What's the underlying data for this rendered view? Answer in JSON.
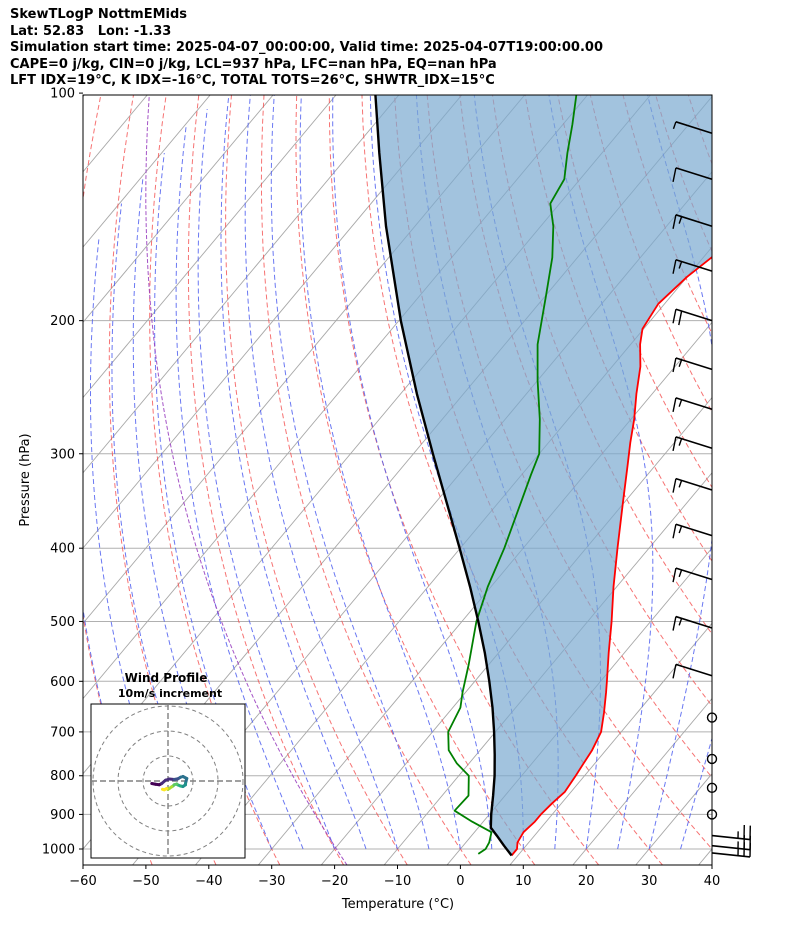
{
  "header": {
    "lines": [
      "SkewTLogP NottmEMids",
      "Lat: 52.83   Lon: -1.33",
      "Simulation start time: 2025-04-07_00:00:00, Valid time: 2025-04-07T19:00:00.00",
      "CAPE=0 j/kg, CIN=0 j/kg, LCL=937 hPa, LFC=nan hPa, EQ=nan hPa",
      "LFT IDX=19°C, K IDX=-16°C, TOTAL TOTS=26°C, SHWTR_IDX=15°C"
    ]
  },
  "chart_data": {
    "type": "line",
    "subtype": "skew-t log-p",
    "xlabel": "Temperature (°C)",
    "ylabel": "Pressure (hPa)",
    "xlim": [
      -60,
      40
    ],
    "ylim": [
      1050,
      100
    ],
    "yscale": "log",
    "grid": true,
    "x_ticks": [
      -60,
      -50,
      -40,
      -30,
      -20,
      -10,
      0,
      10,
      20,
      30,
      40
    ],
    "x_tick_labels": [
      "−60",
      "−50",
      "−40",
      "−30",
      "−20",
      "−10",
      "0",
      "10",
      "20",
      "30",
      "40"
    ],
    "y_ticks": [
      1000,
      900,
      800,
      700,
      600,
      500,
      400,
      300,
      200,
      100
    ],
    "y_tick_labels": [
      "1000",
      "900",
      "800",
      "700",
      "600",
      "500",
      "400",
      "300",
      "200",
      "100"
    ],
    "series": [
      {
        "kind": "temperature",
        "color": "#ff0000",
        "points": [
          [
            1020,
            9.0
          ],
          [
            1000,
            9.0
          ],
          [
            980,
            8.2
          ],
          [
            950,
            7.8
          ],
          [
            920,
            8.2
          ],
          [
            900,
            8.2
          ],
          [
            870,
            8.5
          ],
          [
            840,
            9.0
          ],
          [
            800,
            8.6
          ],
          [
            770,
            8.2
          ],
          [
            740,
            7.8
          ],
          [
            700,
            6.8
          ],
          [
            660,
            4.7
          ],
          [
            620,
            2.3
          ],
          [
            600,
            1.0
          ],
          [
            550,
            -2.5
          ],
          [
            500,
            -6.2
          ],
          [
            450,
            -10.5
          ],
          [
            400,
            -15.0
          ],
          [
            350,
            -20.0
          ],
          [
            310,
            -24.5
          ],
          [
            290,
            -27.0
          ],
          [
            270,
            -29.5
          ],
          [
            250,
            -32.5
          ],
          [
            230,
            -35.5
          ],
          [
            215,
            -38.5
          ],
          [
            205,
            -40.2
          ],
          [
            190,
            -41.0
          ],
          [
            175,
            -40.0
          ],
          [
            160,
            -38.0
          ],
          [
            145,
            -36.5
          ],
          [
            135,
            -34.5
          ],
          [
            120,
            -33.0
          ],
          [
            110,
            -32.0
          ],
          [
            100,
            -31.5
          ]
        ]
      },
      {
        "kind": "dewpoint",
        "color": "#008000",
        "points": [
          [
            1015,
            3.5
          ],
          [
            1000,
            4.0
          ],
          [
            980,
            3.7
          ],
          [
            950,
            2.7
          ],
          [
            920,
            -1.8
          ],
          [
            890,
            -6.0
          ],
          [
            850,
            -5.8
          ],
          [
            800,
            -8.4
          ],
          [
            770,
            -12.0
          ],
          [
            740,
            -15.0
          ],
          [
            700,
            -17.5
          ],
          [
            650,
            -18.8
          ],
          [
            620,
            -20.5
          ],
          [
            570,
            -23.2
          ],
          [
            500,
            -27.7
          ],
          [
            450,
            -30.5
          ],
          [
            400,
            -33.0
          ],
          [
            350,
            -36.3
          ],
          [
            320,
            -38.5
          ],
          [
            300,
            -40.0
          ],
          [
            270,
            -44.5
          ],
          [
            240,
            -50.0
          ],
          [
            215,
            -54.8
          ],
          [
            200,
            -57.3
          ],
          [
            185,
            -60.0
          ],
          [
            165,
            -64.0
          ],
          [
            150,
            -68.0
          ],
          [
            140,
            -71.5
          ],
          [
            130,
            -72.5
          ],
          [
            120,
            -75.5
          ],
          [
            110,
            -78.5
          ],
          [
            100,
            -82.0
          ]
        ]
      },
      {
        "kind": "parcel",
        "color": "#000000",
        "points": [
          [
            1020,
            9.0
          ],
          [
            990,
            6.5
          ],
          [
            960,
            4.0
          ],
          [
            937,
            2.0
          ],
          [
            900,
            0.3
          ],
          [
            850,
            -1.9
          ],
          [
            800,
            -4.3
          ],
          [
            750,
            -7.1
          ],
          [
            700,
            -10.2
          ],
          [
            650,
            -13.7
          ],
          [
            600,
            -17.7
          ],
          [
            550,
            -22.2
          ],
          [
            500,
            -27.4
          ],
          [
            450,
            -33.3
          ],
          [
            400,
            -40.1
          ],
          [
            350,
            -47.9
          ],
          [
            300,
            -56.9
          ],
          [
            250,
            -67.4
          ],
          [
            200,
            -79.7
          ],
          [
            150,
            -94.6
          ],
          [
            120,
            -105.4
          ],
          [
            100,
            -114.0
          ]
        ]
      }
    ],
    "wind_barbs": [
      {
        "p": 1012,
        "speed_kt": 25
      },
      {
        "p": 990,
        "speed_kt": 25
      },
      {
        "p": 960,
        "speed_kt": 25
      },
      {
        "p": 900,
        "speed_kt": 0
      },
      {
        "p": 830,
        "speed_kt": 0
      },
      {
        "p": 760,
        "speed_kt": 0
      },
      {
        "p": 670,
        "speed_kt": 0
      },
      {
        "p": 590,
        "speed_kt": 10
      },
      {
        "p": 510,
        "speed_kt": 15
      },
      {
        "p": 440,
        "speed_kt": 15
      },
      {
        "p": 385,
        "speed_kt": 15
      },
      {
        "p": 335,
        "speed_kt": 15
      },
      {
        "p": 295,
        "speed_kt": 15
      },
      {
        "p": 262,
        "speed_kt": 15
      },
      {
        "p": 232,
        "speed_kt": 15
      },
      {
        "p": 200,
        "speed_kt": 20
      },
      {
        "p": 172,
        "speed_kt": 15
      },
      {
        "p": 150,
        "speed_kt": 15
      },
      {
        "p": 130,
        "speed_kt": 10
      },
      {
        "p": 113,
        "speed_kt": 5
      }
    ],
    "hodograph": {
      "title": "Wind Profile",
      "subtitle": "10m/s increment",
      "rings": [
        10,
        20,
        30
      ],
      "points": [
        [
          -6.5,
          -1.0
        ],
        [
          -5.0,
          -1.3
        ],
        [
          -3.5,
          -1.5
        ],
        [
          -2.5,
          -1.0
        ],
        [
          -1.0,
          0.3
        ],
        [
          0.5,
          0.8
        ],
        [
          2.5,
          0.6
        ],
        [
          4.0,
          0.9
        ],
        [
          5.0,
          1.5
        ],
        [
          6.0,
          1.8
        ],
        [
          7.5,
          1.0
        ],
        [
          7.0,
          -1.0
        ],
        [
          7.0,
          -1.5
        ],
        [
          6.0,
          -2.2
        ],
        [
          5.0,
          -2.0
        ],
        [
          3.8,
          -1.5
        ],
        [
          3.5,
          -1.2
        ],
        [
          2.5,
          -1.5
        ],
        [
          2.0,
          -2.0
        ],
        [
          1.5,
          -2.3
        ],
        [
          0.5,
          -3.0
        ],
        [
          0.0,
          -3.3
        ],
        [
          -0.5,
          -3.0
        ],
        [
          -1.5,
          -3.5
        ],
        [
          -2.2,
          -3.3
        ]
      ]
    }
  }
}
